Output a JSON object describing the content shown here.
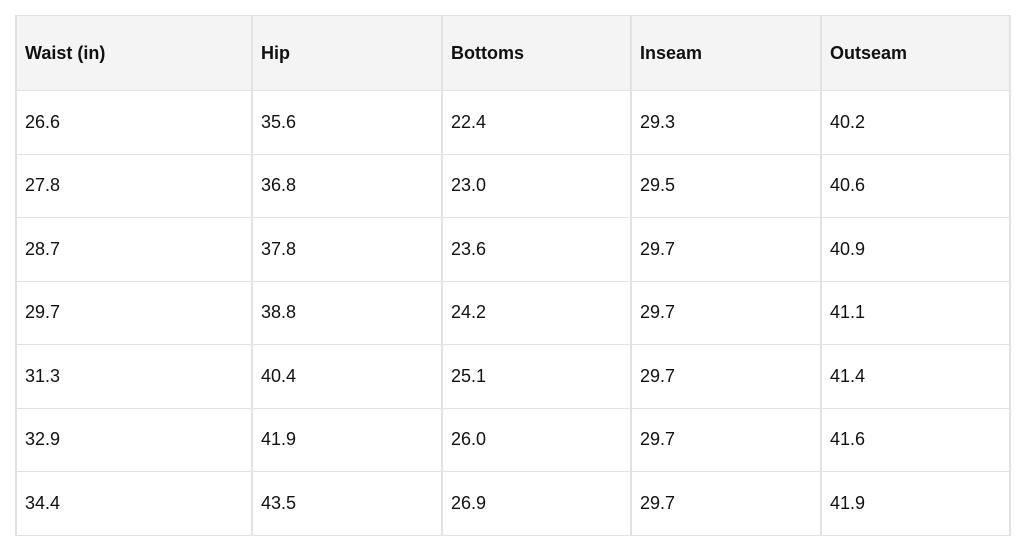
{
  "table": {
    "header": [
      "Waist (in)",
      "Hip",
      "Bottoms",
      "Inseam",
      "Outseam"
    ],
    "rows": [
      [
        "26.6",
        "35.6",
        "22.4",
        "29.3",
        "40.2"
      ],
      [
        "27.8",
        "36.8",
        "23.0",
        "29.5",
        "40.6"
      ],
      [
        "28.7",
        "37.8",
        "23.6",
        "29.7",
        "40.9"
      ],
      [
        "29.7",
        "38.8",
        "24.2",
        "29.7",
        "41.1"
      ],
      [
        "31.3",
        "40.4",
        "25.1",
        "29.7",
        "41.4"
      ],
      [
        "32.9",
        "41.9",
        "26.0",
        "29.7",
        "41.6"
      ],
      [
        "34.4",
        "43.5",
        "26.9",
        "29.7",
        "41.9"
      ]
    ]
  }
}
